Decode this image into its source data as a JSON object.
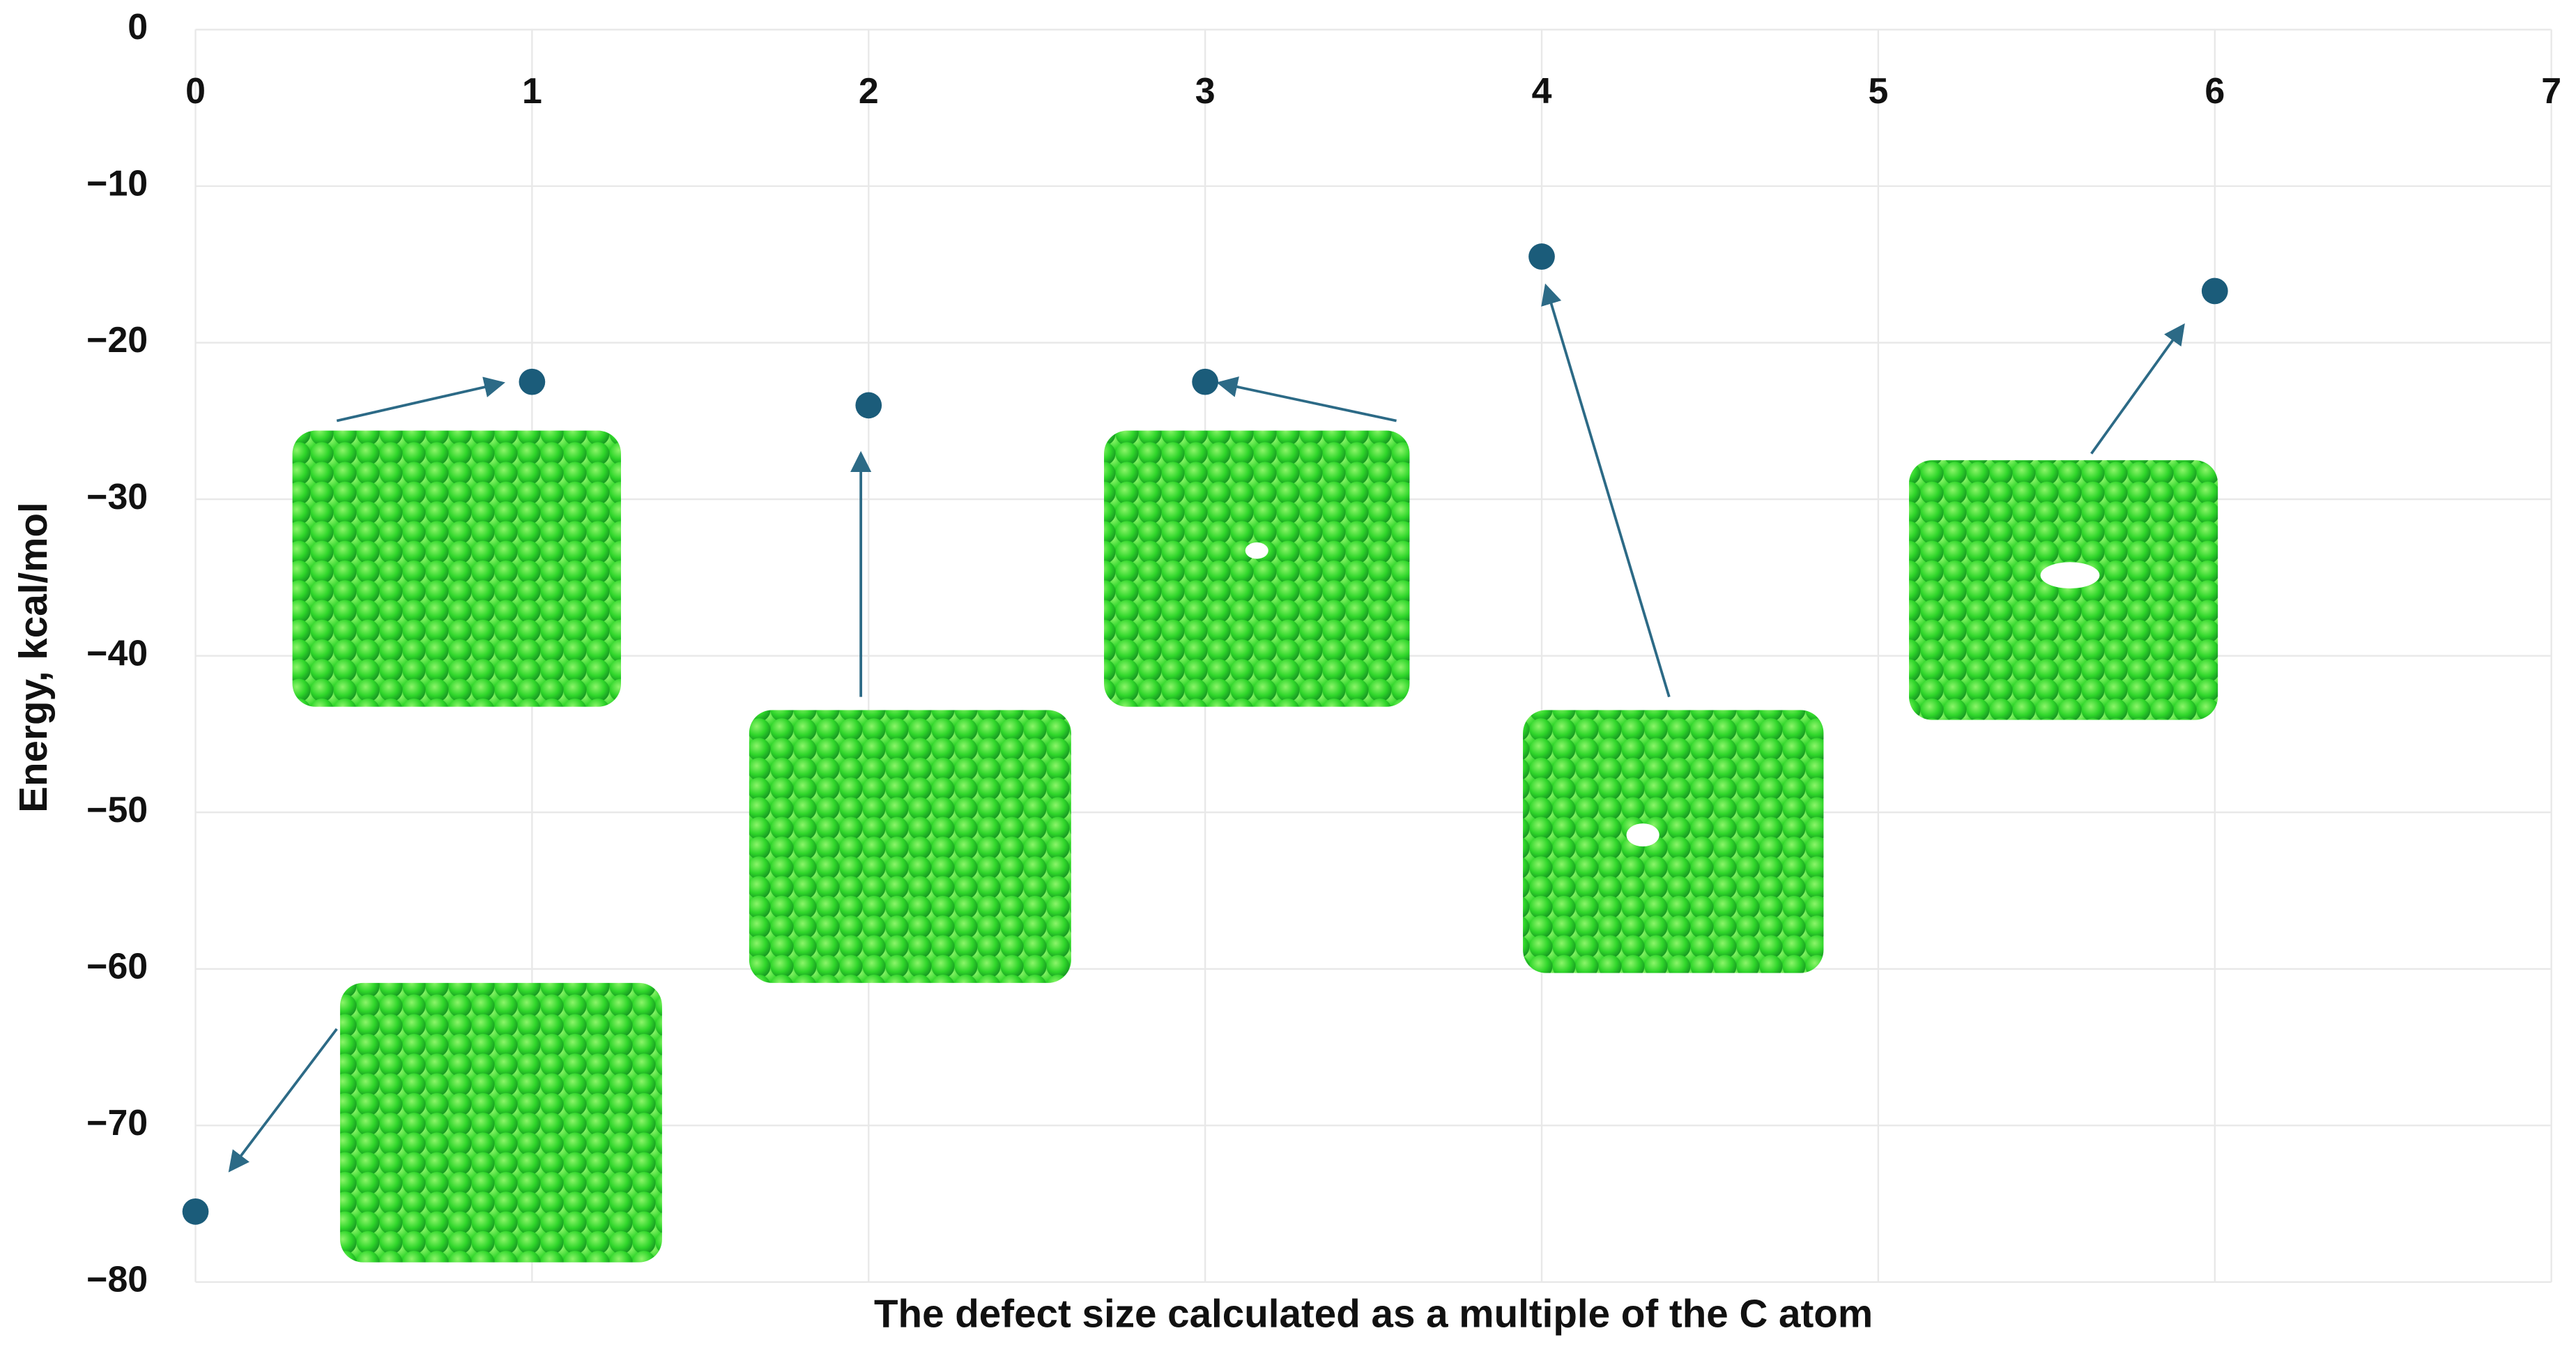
{
  "chart_data": {
    "type": "scatter",
    "x_label": "The defect size calculated as a multiple of the C atom",
    "y_label": "Energy, kcal/mol",
    "x": [
      0,
      1,
      2,
      3,
      4,
      6
    ],
    "values": [
      -75.5,
      -22.5,
      -24,
      -22.5,
      -14.5,
      -16.7
    ],
    "color": "#1b5c7a",
    "xlim": [
      0,
      7
    ],
    "ylim": [
      -80,
      0
    ],
    "xticks": [
      0,
      1,
      2,
      3,
      4,
      5,
      6,
      7
    ],
    "yticks": [
      {
        "value": 0,
        "label": "0"
      },
      {
        "value": -10,
        "label": "−10"
      },
      {
        "value": -20,
        "label": "−20"
      },
      {
        "value": -30,
        "label": "−30"
      },
      {
        "value": -40,
        "label": "−40"
      },
      {
        "value": -50,
        "label": "−50"
      },
      {
        "value": -60,
        "label": "−60"
      },
      {
        "value": -70,
        "label": "−70"
      },
      {
        "value": -80,
        "label": "−80"
      }
    ],
    "grid": true,
    "x_axis_position": "top"
  }
}
